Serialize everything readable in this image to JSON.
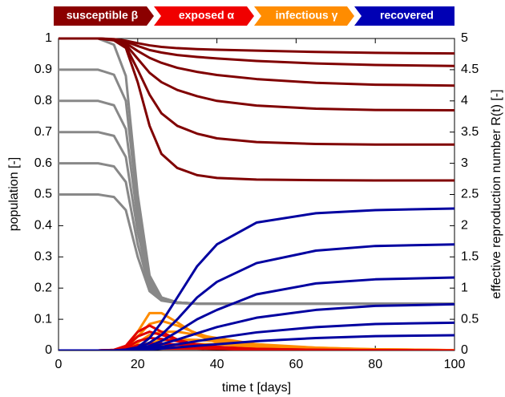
{
  "chart_data": {
    "type": "line",
    "stages": [
      {
        "label": "susceptible β",
        "color": "#8b0000"
      },
      {
        "label": "exposed α",
        "color": "#f00000"
      },
      {
        "label": "infectious γ",
        "color": "#ff8c00"
      },
      {
        "label": "recovered",
        "color": "#0000b4"
      }
    ],
    "xlabel": "time t [days]",
    "ylabel": "population [-]",
    "y2label": "effective reproduction number R(t) [-]",
    "x": [
      0,
      10,
      14,
      17,
      20,
      23,
      26,
      30,
      35,
      40,
      50,
      65,
      80,
      100
    ],
    "xlim": [
      0,
      100
    ],
    "xticks": [
      0,
      20,
      40,
      60,
      80,
      100
    ],
    "ylim": [
      0,
      1
    ],
    "yticks": [
      0,
      0.1,
      0.2,
      0.3,
      0.4,
      0.5,
      0.6,
      0.7,
      0.8,
      0.9,
      1
    ],
    "y2lim": [
      0,
      5
    ],
    "y2ticks": [
      0,
      0.5,
      1,
      1.5,
      2,
      2.5,
      3,
      3.5,
      4,
      4.5,
      5
    ],
    "grid": false,
    "series": [
      {
        "color": "#888888",
        "axis": "y2",
        "values": [
          5,
          5,
          4.9,
          4.4,
          2.5,
          1.2,
          0.85,
          0.77,
          0.75,
          0.75,
          0.75,
          0.75,
          0.75,
          0.75
        ]
      },
      {
        "color": "#888888",
        "axis": "y2",
        "values": [
          4.5,
          4.5,
          4.42,
          4.0,
          2.3,
          1.15,
          0.85,
          0.77,
          0.75,
          0.75,
          0.75,
          0.75,
          0.75,
          0.75
        ]
      },
      {
        "color": "#888888",
        "axis": "y2",
        "values": [
          4,
          4,
          3.93,
          3.55,
          2.1,
          1.1,
          0.84,
          0.77,
          0.75,
          0.75,
          0.75,
          0.75,
          0.75,
          0.75
        ]
      },
      {
        "color": "#888888",
        "axis": "y2",
        "values": [
          3.5,
          3.5,
          3.44,
          3.1,
          1.9,
          1.05,
          0.83,
          0.77,
          0.75,
          0.75,
          0.75,
          0.75,
          0.75,
          0.75
        ]
      },
      {
        "color": "#888888",
        "axis": "y2",
        "values": [
          3,
          3,
          2.95,
          2.7,
          1.7,
          1.0,
          0.82,
          0.76,
          0.75,
          0.75,
          0.75,
          0.75,
          0.75,
          0.75
        ]
      },
      {
        "color": "#888888",
        "axis": "y2",
        "values": [
          2.5,
          2.5,
          2.46,
          2.25,
          1.5,
          0.95,
          0.8,
          0.76,
          0.75,
          0.75,
          0.75,
          0.75,
          0.75,
          0.75
        ]
      },
      {
        "color": "#ff8c00",
        "values": [
          0,
          0,
          0.001,
          0.01,
          0.06,
          0.12,
          0.12,
          0.09,
          0.05,
          0.025,
          0.006,
          0.001,
          0,
          0
        ]
      },
      {
        "color": "#ff8c00",
        "values": [
          0,
          0,
          0.001,
          0.008,
          0.045,
          0.085,
          0.095,
          0.08,
          0.055,
          0.035,
          0.012,
          0.003,
          0,
          0
        ]
      },
      {
        "color": "#ff8c00",
        "values": [
          0,
          0,
          0,
          0.005,
          0.025,
          0.05,
          0.06,
          0.06,
          0.05,
          0.04,
          0.02,
          0.006,
          0.002,
          0
        ]
      },
      {
        "color": "#ff8c00",
        "values": [
          0,
          0,
          0,
          0.003,
          0.013,
          0.025,
          0.032,
          0.035,
          0.034,
          0.03,
          0.02,
          0.009,
          0.003,
          0.001
        ]
      },
      {
        "color": "#ff8c00",
        "values": [
          0,
          0,
          0,
          0.002,
          0.007,
          0.013,
          0.017,
          0.02,
          0.021,
          0.02,
          0.016,
          0.009,
          0.004,
          0.001
        ]
      },
      {
        "color": "#ff8c00",
        "values": [
          0,
          0,
          0,
          0.001,
          0.003,
          0.006,
          0.008,
          0.01,
          0.011,
          0.011,
          0.01,
          0.007,
          0.004,
          0.001
        ]
      },
      {
        "color": "#e00000",
        "values": [
          0,
          0,
          0.002,
          0.015,
          0.06,
          0.08,
          0.06,
          0.035,
          0.015,
          0.006,
          0.001,
          0,
          0,
          0
        ]
      },
      {
        "color": "#e00000",
        "values": [
          0,
          0,
          0.002,
          0.012,
          0.045,
          0.06,
          0.05,
          0.035,
          0.018,
          0.009,
          0.002,
          0,
          0,
          0
        ]
      },
      {
        "color": "#e00000",
        "values": [
          0,
          0,
          0.001,
          0.008,
          0.03,
          0.04,
          0.037,
          0.03,
          0.02,
          0.012,
          0.004,
          0.001,
          0,
          0
        ]
      },
      {
        "color": "#e00000",
        "values": [
          0,
          0,
          0.001,
          0.005,
          0.017,
          0.022,
          0.022,
          0.019,
          0.015,
          0.011,
          0.005,
          0.002,
          0,
          0
        ]
      },
      {
        "color": "#e00000",
        "values": [
          0,
          0,
          0,
          0.003,
          0.009,
          0.012,
          0.012,
          0.011,
          0.01,
          0.008,
          0.005,
          0.002,
          0.001,
          0
        ]
      },
      {
        "color": "#e00000",
        "values": [
          0,
          0,
          0,
          0.002,
          0.005,
          0.006,
          0.006,
          0.006,
          0.006,
          0.005,
          0.004,
          0.002,
          0.001,
          0
        ]
      },
      {
        "color": "#0000a0",
        "values": [
          0,
          0,
          0,
          0.003,
          0.01,
          0.04,
          0.09,
          0.17,
          0.27,
          0.34,
          0.41,
          0.44,
          0.45,
          0.455
        ]
      },
      {
        "color": "#0000a0",
        "values": [
          0,
          0,
          0,
          0.002,
          0.007,
          0.025,
          0.05,
          0.1,
          0.17,
          0.22,
          0.28,
          0.32,
          0.335,
          0.34
        ]
      },
      {
        "color": "#0000a0",
        "values": [
          0,
          0,
          0,
          0.001,
          0.005,
          0.015,
          0.03,
          0.06,
          0.1,
          0.13,
          0.18,
          0.215,
          0.228,
          0.234
        ]
      },
      {
        "color": "#0000a0",
        "values": [
          0,
          0,
          0,
          0.001,
          0.003,
          0.01,
          0.02,
          0.035,
          0.055,
          0.075,
          0.105,
          0.13,
          0.143,
          0.148
        ]
      },
      {
        "color": "#0000a0",
        "values": [
          0,
          0,
          0,
          0,
          0.002,
          0.006,
          0.012,
          0.02,
          0.03,
          0.04,
          0.058,
          0.075,
          0.085,
          0.089
        ]
      },
      {
        "color": "#0000a0",
        "values": [
          0,
          0,
          0,
          0,
          0.001,
          0.003,
          0.006,
          0.01,
          0.015,
          0.02,
          0.03,
          0.04,
          0.046,
          0.049
        ]
      },
      {
        "color": "#800000",
        "values": [
          1,
          1,
          0.998,
          0.993,
          0.985,
          0.978,
          0.973,
          0.969,
          0.966,
          0.964,
          0.961,
          0.957,
          0.954,
          0.952
        ]
      },
      {
        "color": "#800000",
        "values": [
          1,
          1,
          0.997,
          0.99,
          0.976,
          0.963,
          0.955,
          0.947,
          0.941,
          0.936,
          0.928,
          0.92,
          0.915,
          0.912
        ]
      },
      {
        "color": "#800000",
        "values": [
          1,
          1,
          0.997,
          0.985,
          0.96,
          0.938,
          0.922,
          0.906,
          0.893,
          0.883,
          0.87,
          0.858,
          0.852,
          0.849
        ]
      },
      {
        "color": "#800000",
        "values": [
          1,
          1,
          0.996,
          0.98,
          0.935,
          0.89,
          0.86,
          0.835,
          0.815,
          0.8,
          0.785,
          0.775,
          0.771,
          0.77
        ]
      },
      {
        "color": "#800000",
        "values": [
          1,
          1,
          0.995,
          0.975,
          0.9,
          0.82,
          0.76,
          0.72,
          0.695,
          0.68,
          0.668,
          0.662,
          0.66,
          0.66
        ]
      },
      {
        "color": "#800000",
        "values": [
          1,
          1,
          0.994,
          0.97,
          0.86,
          0.72,
          0.63,
          0.585,
          0.562,
          0.553,
          0.548,
          0.546,
          0.545,
          0.545
        ]
      }
    ]
  }
}
